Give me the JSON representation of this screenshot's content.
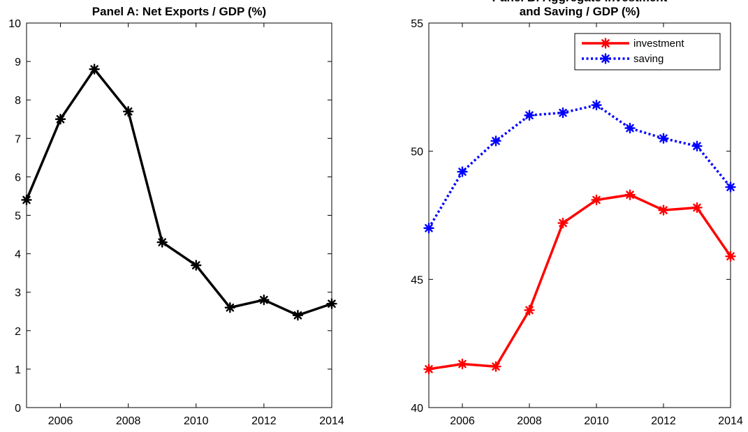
{
  "chart_data": [
    {
      "type": "line",
      "title": "Panel A: Net Exports / GDP (%)",
      "x": [
        2005,
        2006,
        2007,
        2008,
        2009,
        2010,
        2011,
        2012,
        2013,
        2014
      ],
      "xticks": [
        2006,
        2008,
        2010,
        2012,
        2014
      ],
      "xlim": [
        2005,
        2014
      ],
      "ylim": [
        0,
        10
      ],
      "yticks": [
        0,
        1,
        2,
        3,
        4,
        5,
        6,
        7,
        8,
        9,
        10
      ],
      "grid": false,
      "series": [
        {
          "values": [
            5.4,
            7.5,
            8.8,
            7.7,
            4.3,
            3.7,
            2.6,
            2.8,
            2.4,
            2.7
          ],
          "color": "#000000",
          "line_style": "solid",
          "marker": "asterisk"
        }
      ]
    },
    {
      "type": "line",
      "title_lines": [
        "Panel B: Aggregate Investment",
        "and Saving / GDP (%)"
      ],
      "x": [
        2005,
        2006,
        2007,
        2008,
        2009,
        2010,
        2011,
        2012,
        2013,
        2014
      ],
      "xticks": [
        2006,
        2008,
        2010,
        2012,
        2014
      ],
      "xlim": [
        2005,
        2014
      ],
      "ylim": [
        40,
        55
      ],
      "yticks": [
        40,
        45,
        50,
        55
      ],
      "grid": false,
      "legend_position": "top-right",
      "series": [
        {
          "name": "investment",
          "values": [
            41.5,
            41.7,
            41.6,
            43.8,
            47.2,
            48.1,
            48.3,
            47.7,
            47.8,
            45.9
          ],
          "color": "#ff0000",
          "line_style": "solid",
          "marker": "asterisk"
        },
        {
          "name": "saving",
          "values": [
            47.0,
            49.2,
            50.4,
            51.4,
            51.5,
            51.8,
            50.9,
            50.5,
            50.2,
            48.6
          ],
          "color": "#0000ff",
          "line_style": "dotted",
          "marker": "asterisk"
        }
      ]
    }
  ]
}
